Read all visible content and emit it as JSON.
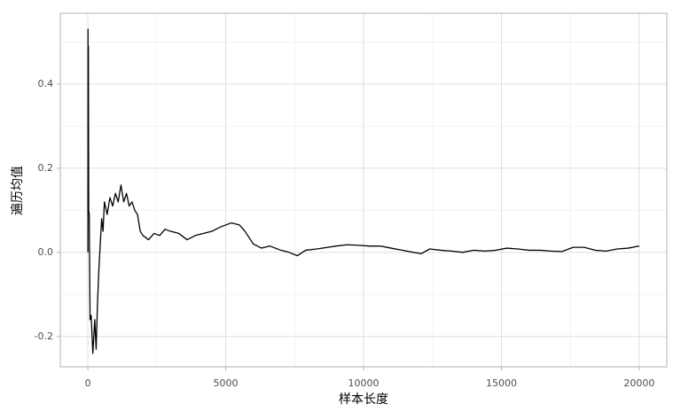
{
  "chart_data": {
    "type": "line",
    "x_label": "样本长度",
    "y_label": "遍历均值",
    "color": "#000000",
    "grid": true,
    "x": [
      1,
      5,
      10,
      20,
      30,
      50,
      80,
      120,
      180,
      250,
      300,
      350,
      400,
      450,
      500,
      550,
      600,
      700,
      800,
      900,
      1000,
      1100,
      1200,
      1300,
      1400,
      1500,
      1600,
      1700,
      1800,
      1900,
      2000,
      2200,
      2400,
      2600,
      2800,
      3000,
      3300,
      3600,
      3900,
      4200,
      4500,
      4800,
      5000,
      5200,
      5500,
      5700,
      6000,
      6300,
      6600,
      7000,
      7300,
      7600,
      7900,
      8300,
      8700,
      9000,
      9400,
      9800,
      10200,
      10600,
      11000,
      11400,
      11800,
      12100,
      12400,
      12800,
      13200,
      13600,
      14000,
      14400,
      14800,
      15200,
      15600,
      16000,
      16400,
      16800,
      17200,
      17600,
      18000,
      18400,
      18800,
      19200,
      19600,
      20000
    ],
    "values": [
      0.0,
      0.53,
      0.3,
      0.49,
      0.1,
      0.09,
      -0.16,
      -0.15,
      -0.24,
      -0.16,
      -0.23,
      -0.12,
      -0.04,
      0.02,
      0.08,
      0.05,
      0.12,
      0.09,
      0.13,
      0.11,
      0.14,
      0.12,
      0.16,
      0.12,
      0.14,
      0.11,
      0.12,
      0.1,
      0.09,
      0.05,
      0.04,
      0.03,
      0.045,
      0.04,
      0.055,
      0.05,
      0.045,
      0.03,
      0.04,
      0.045,
      0.05,
      0.06,
      0.065,
      0.07,
      0.065,
      0.05,
      0.02,
      0.01,
      0.015,
      0.005,
      0.0,
      -0.008,
      0.005,
      0.008,
      0.012,
      0.015,
      0.018,
      0.017,
      0.015,
      0.015,
      0.01,
      0.005,
      0.0,
      -0.003,
      0.008,
      0.005,
      0.003,
      0.0,
      0.005,
      0.003,
      0.005,
      0.01,
      0.008,
      0.005,
      0.005,
      0.003,
      0.002,
      0.012,
      0.012,
      0.005,
      0.003,
      0.008,
      0.01,
      0.015
    ],
    "xlim": [
      -1000,
      21000
    ],
    "xticks": [
      0,
      5000,
      10000,
      15000,
      20000
    ],
    "ylim": [
      -0.272,
      0.568
    ],
    "yticks": [
      {
        "value": -0.2,
        "label": "-0.2"
      },
      {
        "value": 0,
        "label": "0.0"
      },
      {
        "value": 0.2,
        "label": "0.2"
      },
      {
        "value": 0.4,
        "label": "0.4"
      }
    ]
  }
}
